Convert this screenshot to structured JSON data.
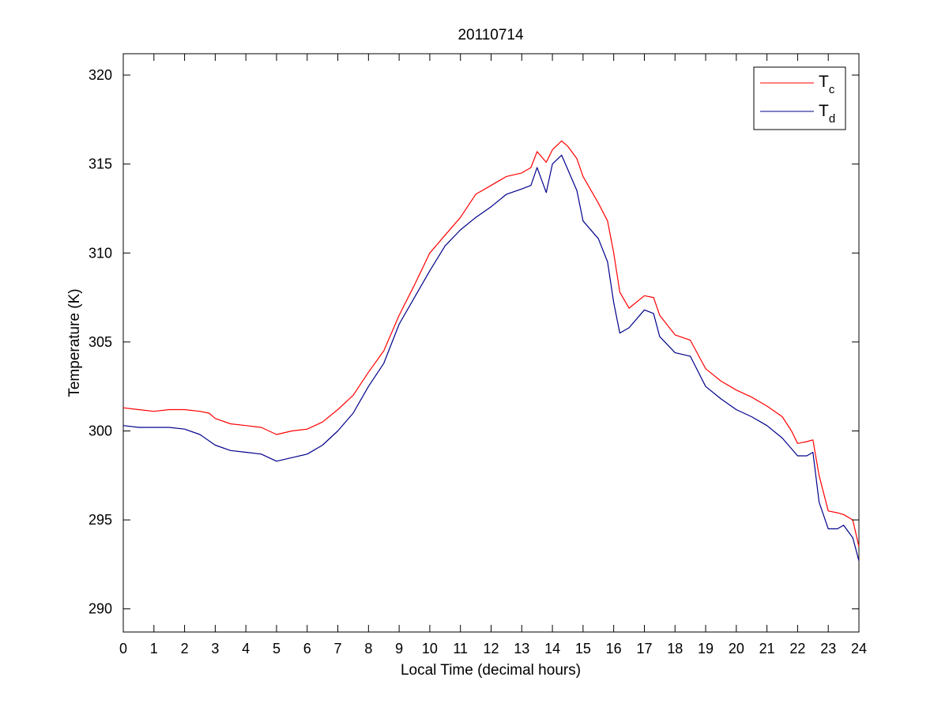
{
  "chart_data": {
    "type": "line",
    "title": "20110714",
    "xlabel": "Local Time (decimal hours)",
    "ylabel": "Temperature (K)",
    "xlim": [
      0,
      24
    ],
    "ylim": [
      288.7,
      321.2
    ],
    "xticks": [
      "0",
      "1",
      "2",
      "3",
      "4",
      "5",
      "6",
      "7",
      "8",
      "9",
      "10",
      "11",
      "12",
      "13",
      "14",
      "15",
      "16",
      "17",
      "18",
      "19",
      "20",
      "21",
      "22",
      "23",
      "24"
    ],
    "yticks": [
      "290",
      "295",
      "300",
      "305",
      "310",
      "315",
      "320"
    ],
    "grid": false,
    "legend": {
      "placement": "top-right",
      "entries": [
        {
          "base": "T",
          "sub": "c",
          "color": "#ff0000"
        },
        {
          "base": "T",
          "sub": "d",
          "color": "#00008b"
        }
      ]
    },
    "series": [
      {
        "color": "#ff0000",
        "x": [
          0,
          0.5,
          1,
          1.5,
          2,
          2.5,
          2.8,
          3,
          3.5,
          4,
          4.5,
          5,
          5.5,
          6,
          6.5,
          7,
          7.5,
          8,
          8.5,
          9,
          9.5,
          10,
          10.5,
          11,
          11.5,
          12,
          12.5,
          13,
          13.3,
          13.5,
          13.8,
          14,
          14.3,
          14.5,
          14.8,
          15,
          15.5,
          15.8,
          16,
          16.2,
          16.5,
          17,
          17.3,
          17.5,
          18,
          18.5,
          19,
          19.5,
          20,
          20.5,
          21,
          21.5,
          21.8,
          22,
          22.3,
          22.5,
          22.7,
          23,
          23.3,
          23.5,
          23.8,
          24
        ],
        "y": [
          301.3,
          301.2,
          301.1,
          301.2,
          301.2,
          301.1,
          301.0,
          300.7,
          300.4,
          300.3,
          300.2,
          299.8,
          300.0,
          300.1,
          300.5,
          301.2,
          302.0,
          303.3,
          304.5,
          306.5,
          308.2,
          310.0,
          311.0,
          312.0,
          313.3,
          313.8,
          314.3,
          314.5,
          314.8,
          315.7,
          315.1,
          315.8,
          316.3,
          316.0,
          315.3,
          314.3,
          312.8,
          311.8,
          310.0,
          307.8,
          306.9,
          307.6,
          307.5,
          306.5,
          305.4,
          305.1,
          303.5,
          302.8,
          302.3,
          301.9,
          301.4,
          300.8,
          300.0,
          299.3,
          299.4,
          299.5,
          297.5,
          295.5,
          295.4,
          295.3,
          295.0,
          293.5
        ]
      },
      {
        "color": "#00008b",
        "x": [
          0,
          0.5,
          1,
          1.5,
          2,
          2.5,
          3,
          3.5,
          4,
          4.5,
          5,
          5.5,
          6,
          6.5,
          7,
          7.5,
          8,
          8.5,
          9,
          9.5,
          10,
          10.5,
          11,
          11.5,
          12,
          12.5,
          13,
          13.3,
          13.5,
          13.8,
          14,
          14.3,
          14.5,
          14.8,
          15,
          15.5,
          15.8,
          16,
          16.2,
          16.5,
          17,
          17.3,
          17.5,
          18,
          18.5,
          19,
          19.5,
          20,
          20.5,
          21,
          21.5,
          21.8,
          22,
          22.3,
          22.5,
          22.7,
          23,
          23.3,
          23.5,
          23.8,
          24
        ],
        "y": [
          300.3,
          300.2,
          300.2,
          300.2,
          300.1,
          299.8,
          299.2,
          298.9,
          298.8,
          298.7,
          298.3,
          298.5,
          298.7,
          299.2,
          300.0,
          301.0,
          302.5,
          303.8,
          306.0,
          307.5,
          309.0,
          310.4,
          311.3,
          312.0,
          312.6,
          313.3,
          313.6,
          313.8,
          314.8,
          313.4,
          315.0,
          315.5,
          314.7,
          313.5,
          311.8,
          310.8,
          309.5,
          307.2,
          305.5,
          305.8,
          306.8,
          306.6,
          305.3,
          304.4,
          304.2,
          302.5,
          301.8,
          301.2,
          300.8,
          300.3,
          299.6,
          299.0,
          298.6,
          298.6,
          298.8,
          296.0,
          294.5,
          294.5,
          294.7,
          294.0,
          292.7
        ]
      }
    ]
  }
}
